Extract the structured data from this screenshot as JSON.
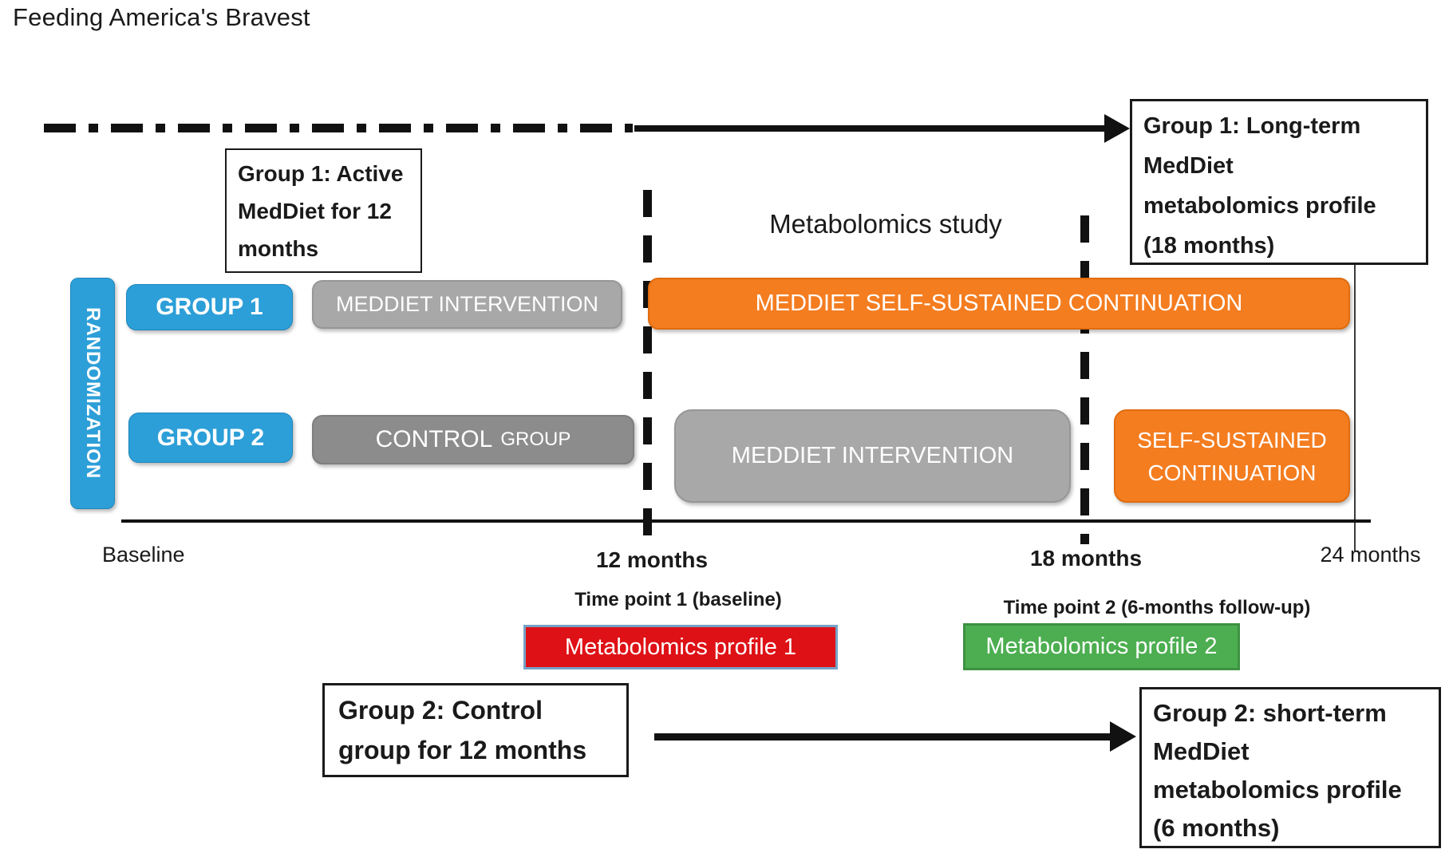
{
  "title": "Feeding America's Bravest",
  "colors": {
    "blue": "#2D9FD8",
    "orange": "#F47D20",
    "light_gray": "#A8A8A8",
    "dark_gray": "#8C8C8C",
    "red": "#DE1116",
    "red_border": "#76A3C6",
    "green": "#4CAE50",
    "green_border": "#3E9142",
    "black": "#111111"
  },
  "annotations": {
    "metabolomics_study": "Metabolomics study",
    "group1_active": {
      "lines": [
        "Group 1: Active",
        "MedDiet for 12",
        "months"
      ]
    },
    "group1_longterm": {
      "lines": [
        "Group 1: Long-term",
        "MedDiet",
        "metabolomics profile",
        "(18 months)"
      ]
    },
    "group2_control": {
      "lines": [
        "Group 2: Control",
        "group for 12 months"
      ]
    },
    "group2_shortterm": {
      "lines": [
        "Group 2: short-term",
        "MedDiet",
        "metabolomics profile",
        "(6 months)"
      ]
    }
  },
  "flow": {
    "randomization": "RANDOMIZATION",
    "group1": {
      "label": "GROUP 1",
      "phase1": "MEDDIET INTERVENTION",
      "phase2": "MEDDIET SELF-SUSTAINED CONTINUATION"
    },
    "group2": {
      "label": "GROUP 2",
      "phase1_word1": "CONTROL",
      "phase1_word2": "GROUP",
      "phase2": "MEDDIET INTERVENTION",
      "phase3_lines": [
        "SELF-SUSTAINED",
        "CONTINUATION"
      ]
    }
  },
  "timeline": {
    "ticks": [
      "Baseline",
      "12 months",
      "18 months",
      "24 months"
    ]
  },
  "timepoints": {
    "tp1": {
      "label": "Time point 1 (baseline)",
      "box": "Metabolomics profile 1"
    },
    "tp2": {
      "label": "Time point 2 (6-months follow-up)",
      "box": "Metabolomics profile 2"
    }
  }
}
